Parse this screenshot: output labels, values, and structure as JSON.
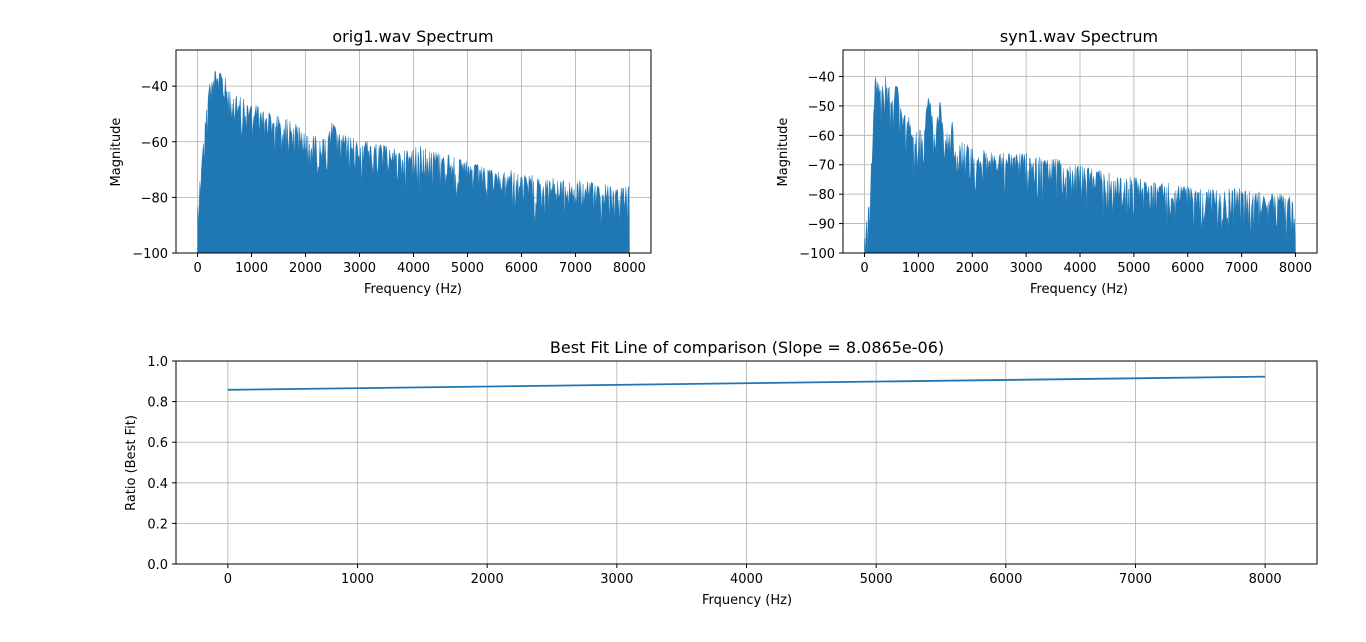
{
  "style": {
    "series_color": "#1f77b4",
    "grid_color": "#b0b0b0"
  },
  "chart_data": [
    {
      "type": "area",
      "title": "orig1.wav Spectrum",
      "xlabel": "Frequency (Hz)",
      "ylabel": "Magnitude",
      "xlim": [
        -400,
        8400
      ],
      "ylim": [
        -100,
        -27
      ],
      "grid": true,
      "x_ticks": [
        "0",
        "1000",
        "2000",
        "3000",
        "4000",
        "5000",
        "6000",
        "7000",
        "8000"
      ],
      "y_ticks": [
        "-40",
        "-60",
        "-80",
        "-100"
      ],
      "x_tick_values": [
        0,
        1000,
        2000,
        3000,
        4000,
        5000,
        6000,
        7000,
        8000
      ],
      "y_tick_values": [
        -40,
        -60,
        -80,
        -100
      ],
      "x": [
        0,
        100,
        200,
        300,
        400,
        500,
        600,
        800,
        1000,
        1200,
        1400,
        1600,
        1800,
        2000,
        2200,
        2400,
        2500,
        2600,
        2800,
        3000,
        3200,
        3400,
        3600,
        3800,
        4000,
        4200,
        4400,
        4600,
        4800,
        5000,
        5200,
        5400,
        5600,
        5800,
        6000,
        6200,
        6400,
        6600,
        6800,
        7000,
        7200,
        7400,
        7600,
        7800,
        8000
      ],
      "peak": [
        -80,
        -60,
        -40,
        -33,
        -35,
        -36,
        -42,
        -44,
        -46,
        -48,
        -50,
        -51,
        -53,
        -57,
        -58,
        -59,
        -52,
        -57,
        -58,
        -59,
        -60,
        -61,
        -62,
        -63,
        -62,
        -61,
        -63,
        -64,
        -66,
        -67,
        -68,
        -70,
        -71,
        -70,
        -72,
        -72,
        -73,
        -73,
        -74,
        -74,
        -74,
        -75,
        -75,
        -76,
        -76
      ],
      "floor": -100
    },
    {
      "type": "area",
      "title": "syn1.wav Spectrum",
      "xlabel": "Frequency (Hz)",
      "ylabel": "Magnitude",
      "xlim": [
        -400,
        8400
      ],
      "ylim": [
        -100,
        -31
      ],
      "grid": true,
      "x_ticks": [
        "0",
        "1000",
        "2000",
        "3000",
        "4000",
        "5000",
        "6000",
        "7000",
        "8000"
      ],
      "y_ticks": [
        "-40",
        "-50",
        "-60",
        "-70",
        "-80",
        "-90",
        "-100"
      ],
      "x_tick_values": [
        0,
        1000,
        2000,
        3000,
        4000,
        5000,
        6000,
        7000,
        8000
      ],
      "y_tick_values": [
        -40,
        -50,
        -60,
        -70,
        -80,
        -90,
        -100
      ],
      "x": [
        0,
        100,
        200,
        300,
        400,
        500,
        600,
        700,
        800,
        900,
        1000,
        1100,
        1200,
        1300,
        1400,
        1500,
        1600,
        1700,
        1800,
        2000,
        2200,
        2400,
        2600,
        2800,
        3000,
        3200,
        3400,
        3600,
        3800,
        4000,
        4200,
        4400,
        4600,
        4800,
        5000,
        5200,
        5400,
        5600,
        5800,
        6000,
        6200,
        6400,
        6600,
        6800,
        7000,
        7200,
        7400,
        7600,
        7800,
        8000
      ],
      "peak": [
        -95,
        -80,
        -38,
        -45,
        -38,
        -47,
        -42,
        -54,
        -52,
        -60,
        -58,
        -56,
        -44,
        -60,
        -47,
        -62,
        -52,
        -63,
        -62,
        -64,
        -65,
        -66,
        -66,
        -66,
        -66,
        -67,
        -68,
        -68,
        -70,
        -70,
        -71,
        -72,
        -73,
        -74,
        -74,
        -75,
        -76,
        -76,
        -77,
        -77,
        -78,
        -78,
        -79,
        -78,
        -78,
        -79,
        -79,
        -80,
        -80,
        -81
      ],
      "floor": -100
    },
    {
      "type": "line",
      "title": "Best Fit Line of comparison (Slope = 8.0865e-06)",
      "xlabel": "Frquency (Hz)",
      "ylabel": "Ratio (Best Fit)",
      "xlim": [
        -400,
        8400
      ],
      "ylim": [
        0.0,
        1.0
      ],
      "grid": true,
      "x_ticks": [
        "0",
        "1000",
        "2000",
        "3000",
        "4000",
        "5000",
        "6000",
        "7000",
        "8000"
      ],
      "y_ticks": [
        "0.0",
        "0.2",
        "0.4",
        "0.6",
        "0.8",
        "1.0"
      ],
      "x_tick_values": [
        0,
        1000,
        2000,
        3000,
        4000,
        5000,
        6000,
        7000,
        8000
      ],
      "y_tick_values": [
        0.0,
        0.2,
        0.4,
        0.6,
        0.8,
        1.0
      ],
      "series": [
        {
          "x": [
            0,
            8000
          ],
          "y": [
            0.858,
            0.923
          ]
        }
      ]
    }
  ]
}
